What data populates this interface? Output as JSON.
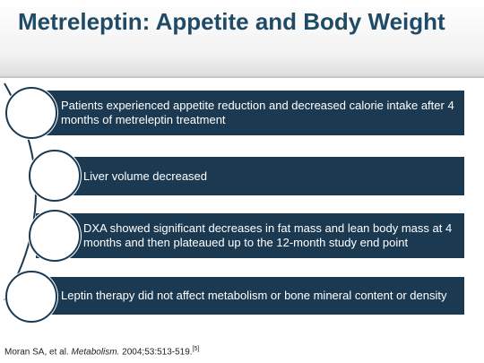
{
  "slide": {
    "title": "Metreleptin: Appetite and Body Weight",
    "bullets": [
      {
        "text": "Patients experienced appetite reduction and decreased calorie intake after 4 months of metreleptin treatment"
      },
      {
        "text": "Liver volume decreased"
      },
      {
        "text": "DXA showed significant decreases in fat mass and lean body mass at 4 months and then plateaued up to the 12-month study end point"
      },
      {
        "text": "Leptin therapy did not affect metabolism or bone mineral content or density"
      }
    ],
    "citation": {
      "authors": "Moran SA, et al.",
      "journal": "Metabolism.",
      "details": "2004;53:513-519.",
      "ref": "[5]"
    }
  },
  "colors": {
    "title": "#1f4b66",
    "bar": "#1b3a52",
    "bar_text": "#ffffff"
  }
}
